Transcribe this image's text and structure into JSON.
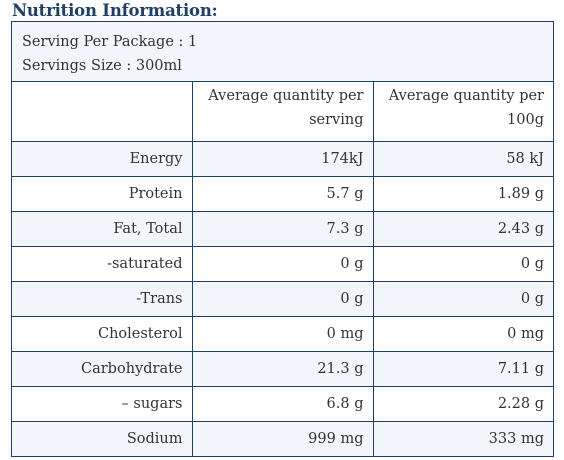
{
  "heading": "Nutrition Information:",
  "serving": {
    "per_package": "Serving Per Package : 1",
    "size": "Servings Size : 300ml"
  },
  "table": {
    "headers": [
      "",
      "Average quantity per serving",
      "Average quantity per 100g"
    ],
    "rows": [
      {
        "nutrient": "Energy",
        "per_serving": "174kJ",
        "per_100g": "58 kJ"
      },
      {
        "nutrient": "Protein",
        "per_serving": "5.7 g",
        "per_100g": "1.89 g"
      },
      {
        "nutrient": "Fat, Total",
        "per_serving": "7.3 g",
        "per_100g": "2.43 g"
      },
      {
        "nutrient": "-saturated",
        "per_serving": "0 g",
        "per_100g": "0 g"
      },
      {
        "nutrient": "-Trans",
        "per_serving": "0 g",
        "per_100g": "0 g"
      },
      {
        "nutrient": "Cholesterol",
        "per_serving": "0 mg",
        "per_100g": "0 mg"
      },
      {
        "nutrient": "Carbohydrate",
        "per_serving": "21.3 g",
        "per_100g": "7.11 g"
      },
      {
        "nutrient": "– sugars",
        "per_serving": "6.8 g",
        "per_100g": "2.28 g"
      },
      {
        "nutrient": "Sodium",
        "per_serving": "999 mg",
        "per_100g": "333 mg"
      }
    ]
  },
  "colors": {
    "heading": "#1e3f66",
    "border": "#1e3f66",
    "row_shade": "#f2f5f9",
    "text": "#333333"
  }
}
